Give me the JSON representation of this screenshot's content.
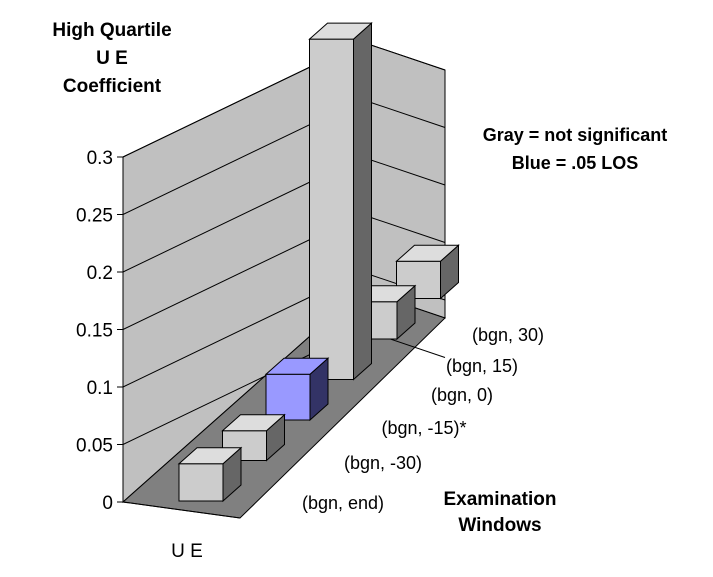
{
  "chart_data": {
    "type": "bar",
    "title_lines": [
      "High Quartile",
      "U E",
      "Coefficient"
    ],
    "legend_lines": [
      "Gray = not significant",
      "Blue = .05 LOS"
    ],
    "xlabel": "U E",
    "zlabel_lines": [
      "Examination",
      "Windows"
    ],
    "ylim": [
      0,
      0.3
    ],
    "yticks": [
      "0",
      "0.05",
      "0.1",
      "0.15",
      "0.2",
      "0.25",
      "0.3"
    ],
    "categories": [
      "(bgn, end)",
      "(bgn, -30)",
      "(bgn, -15)*",
      "(bgn, 0)",
      "(bgn, 15)",
      "(bgn, 30)"
    ],
    "values": [
      0.035,
      0.028,
      0.043,
      0.32,
      0.035,
      0.035
    ],
    "significant": [
      false,
      false,
      true,
      false,
      false,
      false
    ],
    "colors": {
      "gray": "#cccccc",
      "blue": "#9999ff",
      "wall": "#c0c0c0",
      "floor": "#808080"
    }
  }
}
